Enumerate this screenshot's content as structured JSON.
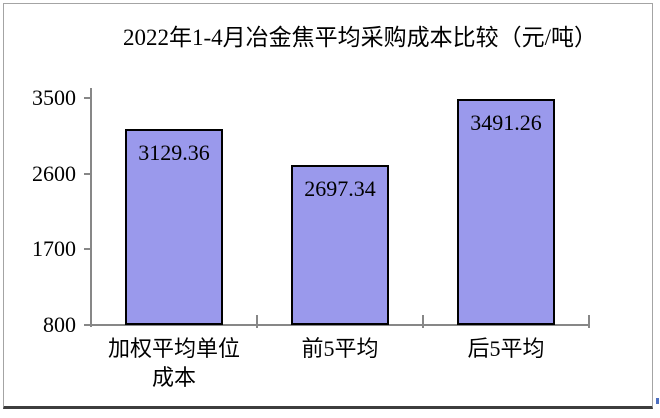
{
  "chart_data": {
    "type": "bar",
    "title": "2022年1-4月冶金焦平均采购成本比较（元/吨）",
    "categories": [
      "加权平均单位成本",
      "前5平均",
      "后5平均"
    ],
    "values": [
      3129.36,
      2697.34,
      3491.26
    ],
    "yticks": [
      3500,
      2600,
      1700,
      800
    ],
    "ylim": [
      800,
      3500
    ],
    "xlabel": "",
    "ylabel": "",
    "unit": "元/吨",
    "grid": false,
    "legend_position": "none",
    "data_label_position": "inside-end",
    "colors": {
      "bar_fill": "#9a99ec",
      "bar_border": "#000000",
      "axis": "#878787",
      "text": "#000000",
      "frame_border": "#a4a4a4",
      "frame_bottom": "#3d3d3d",
      "background": "#ffffff",
      "artifact": "#4d6fc0"
    }
  }
}
